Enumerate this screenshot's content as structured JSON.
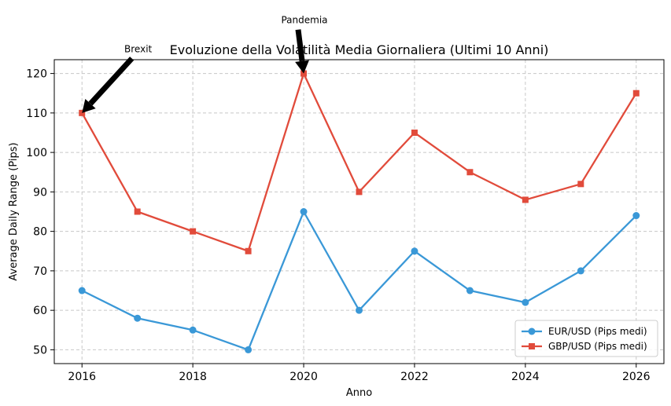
{
  "chart_data": {
    "type": "line",
    "title": "Evoluzione della Volatilità Media Giornaliera (Ultimi 10 Anni)",
    "xlabel": "Anno",
    "ylabel": "Average Daily Range (Pips)",
    "x": [
      2016,
      2017,
      2018,
      2019,
      2020,
      2021,
      2022,
      2023,
      2024,
      2025,
      2026
    ],
    "xlim": [
      2015.5,
      2026.5
    ],
    "ylim": [
      46.5,
      123.5
    ],
    "xticks": [
      2016,
      2018,
      2020,
      2022,
      2024,
      2026
    ],
    "yticks": [
      50,
      60,
      70,
      80,
      90,
      100,
      110,
      120
    ],
    "grid": true,
    "legend_position": "lower-right",
    "series": [
      {
        "name": "EUR/USD (Pips medi)",
        "color": "#3a98d7",
        "marker": "circle",
        "values": [
          65,
          58,
          55,
          50,
          85,
          60,
          75,
          65,
          62,
          70,
          84
        ]
      },
      {
        "name": "GBP/USD (Pips medi)",
        "color": "#e14b3b",
        "marker": "square",
        "values": [
          110,
          85,
          80,
          75,
          120,
          90,
          105,
          95,
          88,
          92,
          115
        ]
      }
    ],
    "annotations": [
      {
        "text": "Brexit",
        "x": 2016,
        "y": 110,
        "text_x": 2016.9,
        "text_y": 126.2
      },
      {
        "text": "Pandemia",
        "x": 2020,
        "y": 120,
        "text_x": 2019.9,
        "text_y": 133.5
      }
    ]
  }
}
